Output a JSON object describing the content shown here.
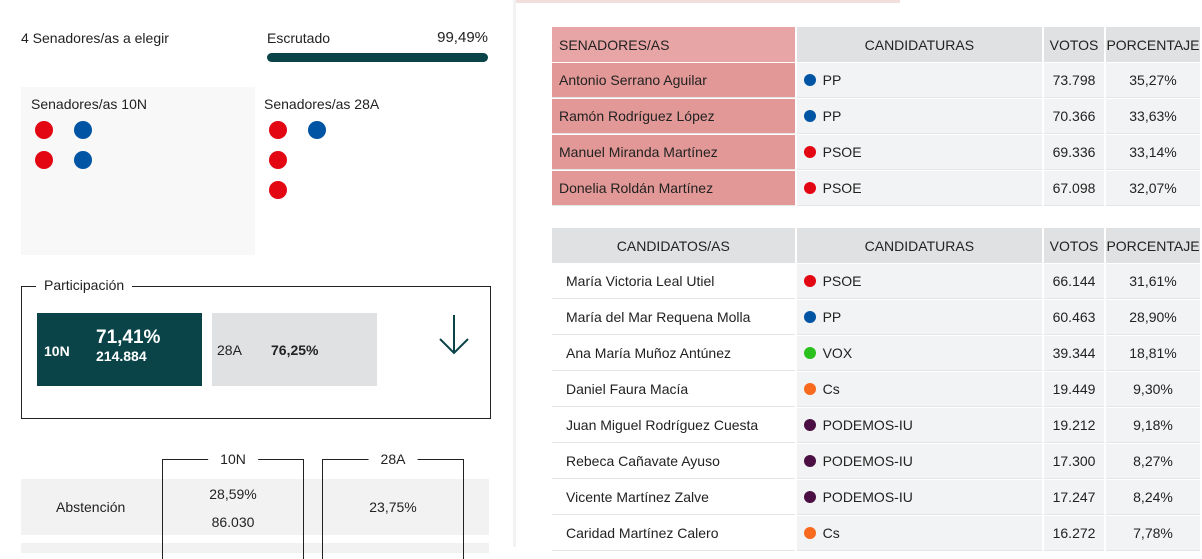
{
  "header": {
    "seats_label": "4 Senadores/as a elegir",
    "scrutiny_label": "Escrutado",
    "scrutiny_value": "99,49%",
    "scrutiny_fraction": 0.9949
  },
  "senators": {
    "n10": {
      "title": "Senadores/as 10N",
      "dots": [
        "#e30613",
        "#0054a4",
        "#e30613",
        "#0054a4"
      ]
    },
    "a28": {
      "title": "Senadores/as 28A",
      "dots": [
        "#e30613",
        "#0054a4",
        "#e30613",
        "#e30613"
      ]
    }
  },
  "participation": {
    "legend": "Participación",
    "n10": {
      "label": "10N",
      "pct": "71,41%",
      "votes": "214.884"
    },
    "a28": {
      "label": "28A",
      "pct": "76,25%"
    },
    "trend_icon": "arrow-down-icon"
  },
  "abstention": {
    "label": "Abstención",
    "col_10n": "10N",
    "col_28a": "28A",
    "n10_pct": "28,59%",
    "n10_votes": "86.030",
    "a28_pct": "23,75%"
  },
  "party_colors": {
    "PP": "#0054a4",
    "PSOE": "#e30613",
    "VOX": "#2ac11e",
    "Cs": "#fa6a1e",
    "PODEMOS-IU": "#4b0f44"
  },
  "elected_table": {
    "headers": [
      "SENADORES/AS",
      "CANDIDATURAS",
      "VOTOS",
      "PORCENTAJE"
    ],
    "rows": [
      [
        "Antonio Serrano Aguilar",
        "PP",
        "73.798",
        "35,27%"
      ],
      [
        "Ramón Rodríguez López",
        "PP",
        "70.366",
        "33,63%"
      ],
      [
        "Manuel Miranda Martínez",
        "PSOE",
        "69.336",
        "33,14%"
      ],
      [
        "Donelia Roldán Martínez",
        "PSOE",
        "67.098",
        "32,07%"
      ]
    ]
  },
  "candidates_table": {
    "headers": [
      "CANDIDATOS/AS",
      "CANDIDATURAS",
      "VOTOS",
      "PORCENTAJE"
    ],
    "rows": [
      [
        "María Victoria Leal Utiel",
        "PSOE",
        "66.144",
        "31,61%"
      ],
      [
        "María del Mar Requena Molla",
        "PP",
        "60.463",
        "28,90%"
      ],
      [
        "Ana María Muñoz Antúnez",
        "VOX",
        "39.344",
        "18,81%"
      ],
      [
        "Daniel Faura Macía",
        "Cs",
        "19.449",
        "9,30%"
      ],
      [
        "Juan Miguel Rodríguez Cuesta",
        "PODEMOS-IU",
        "19.212",
        "9,18%"
      ],
      [
        "Rebeca Cañavate Ayuso",
        "PODEMOS-IU",
        "17.300",
        "8,27%"
      ],
      [
        "Vicente Martínez Zalve",
        "PODEMOS-IU",
        "17.247",
        "8,24%"
      ],
      [
        "Caridad Martínez Calero",
        "Cs",
        "16.272",
        "7,78%"
      ]
    ]
  }
}
